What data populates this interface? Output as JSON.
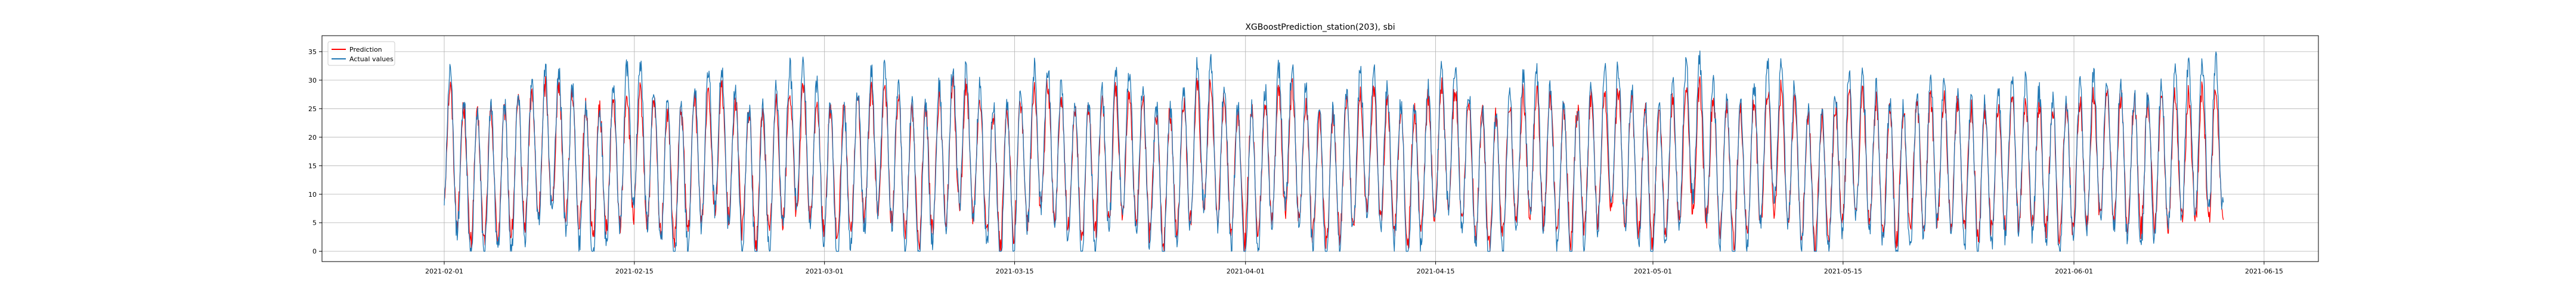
{
  "chart_data": {
    "type": "line",
    "title": "XGBoostPrediction_station(203), sbi",
    "xlabel": "",
    "ylabel": "",
    "x_type": "date",
    "x_range": [
      "2021-01-23",
      "2021-06-19"
    ],
    "ylim": [
      -1.8,
      37.8
    ],
    "y_ticks": [
      0,
      5,
      10,
      15,
      20,
      25,
      30,
      35
    ],
    "x_ticks": [
      "2021-02-01",
      "2021-02-15",
      "2021-03-01",
      "2021-03-15",
      "2021-04-01",
      "2021-04-15",
      "2021-05-01",
      "2021-05-15",
      "2021-06-01",
      "2021-06-15"
    ],
    "grid": true,
    "legend_position": "upper-left",
    "data_start": "2021-02-01",
    "data_end": "2021-06-12",
    "series": [
      {
        "name": "Prediction",
        "color": "#ff0000",
        "x": [
          "2021-02-01",
          "2021-02-03",
          "2021-02-06",
          "2021-02-09",
          "2021-02-12",
          "2021-02-15",
          "2021-02-18",
          "2021-02-21",
          "2021-02-24",
          "2021-02-27",
          "2021-03-02",
          "2021-03-05",
          "2021-03-08",
          "2021-03-11",
          "2021-03-14",
          "2021-03-17",
          "2021-03-20",
          "2021-03-23",
          "2021-03-26",
          "2021-03-29",
          "2021-04-01",
          "2021-04-04",
          "2021-04-07",
          "2021-04-10",
          "2021-04-13",
          "2021-04-16",
          "2021-04-19",
          "2021-04-22",
          "2021-04-25",
          "2021-04-28",
          "2021-05-01",
          "2021-05-04",
          "2021-05-07",
          "2021-05-10",
          "2021-05-13",
          "2021-05-16",
          "2021-05-19",
          "2021-05-22",
          "2021-05-25",
          "2021-05-28",
          "2021-05-31",
          "2021-06-03",
          "2021-06-06",
          "2021-06-09",
          "2021-06-12"
        ],
        "y": [
          28,
          7,
          12,
          27,
          10,
          22,
          8,
          26,
          7,
          24,
          9,
          25,
          8,
          27,
          6,
          26,
          9,
          24,
          7,
          26,
          8,
          25,
          6,
          24,
          8,
          27,
          5,
          23,
          9,
          25,
          7,
          26,
          8,
          24,
          6,
          22,
          9,
          20,
          11,
          18,
          12,
          21,
          15,
          19,
          22
        ]
      },
      {
        "name": "Actual values",
        "color": "#1f77b4",
        "x": [
          "2021-02-01",
          "2021-02-03",
          "2021-02-06",
          "2021-02-09",
          "2021-02-12",
          "2021-02-15",
          "2021-02-18",
          "2021-02-21",
          "2021-02-24",
          "2021-02-27",
          "2021-03-02",
          "2021-03-05",
          "2021-03-08",
          "2021-03-11",
          "2021-03-14",
          "2021-03-17",
          "2021-03-20",
          "2021-03-23",
          "2021-03-26",
          "2021-03-29",
          "2021-04-01",
          "2021-04-04",
          "2021-04-07",
          "2021-04-10",
          "2021-04-13",
          "2021-04-16",
          "2021-04-19",
          "2021-04-22",
          "2021-04-25",
          "2021-04-28",
          "2021-05-01",
          "2021-05-04",
          "2021-05-07",
          "2021-05-10",
          "2021-05-13",
          "2021-05-16",
          "2021-05-19",
          "2021-05-22",
          "2021-05-25",
          "2021-05-28",
          "2021-05-31",
          "2021-06-03",
          "2021-06-06",
          "2021-06-09",
          "2021-06-12"
        ],
        "y": [
          31,
          5,
          10,
          30,
          3,
          33,
          2,
          32,
          1,
          34,
          2,
          31,
          3,
          33,
          2,
          32,
          4,
          29,
          3,
          33,
          2,
          32,
          1,
          30,
          3,
          32,
          0,
          28,
          4,
          31,
          2,
          36,
          3,
          34,
          1,
          27,
          5,
          24,
          7,
          22,
          9,
          26,
          10,
          28,
          31
        ]
      }
    ]
  }
}
